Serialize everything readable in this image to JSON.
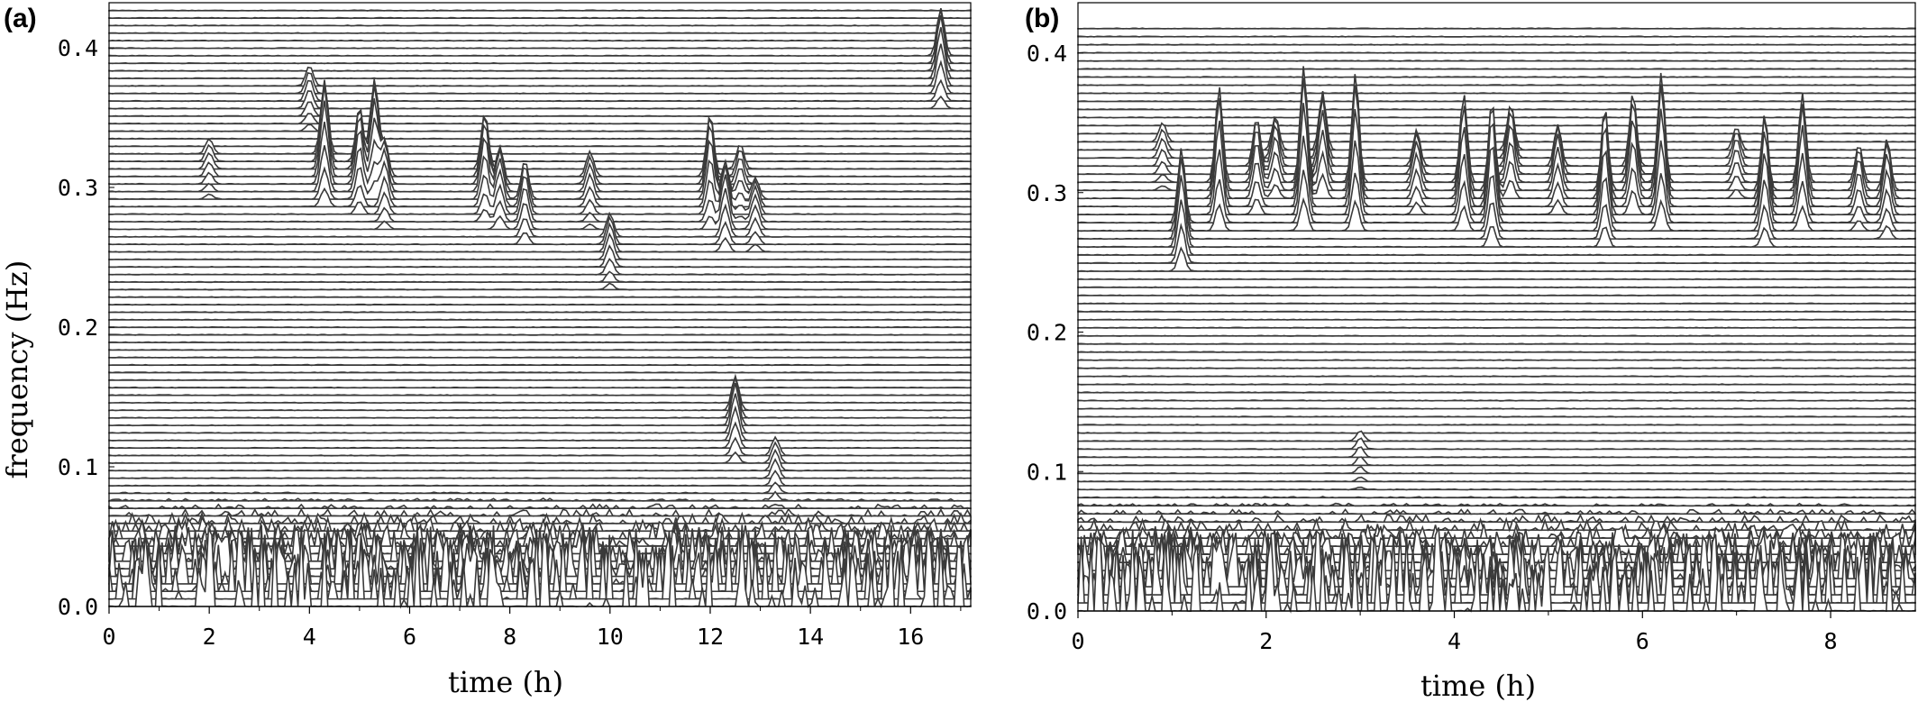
{
  "chart_data": [
    {
      "type": "line",
      "panel_label": "(a)",
      "chart_kind": "waterfall time-frequency plot (stacked spectral traces)",
      "xlabel": "time (h)",
      "ylabel": "frequency (Hz)",
      "xlim": [
        0,
        17.2
      ],
      "ylim": [
        0,
        0.43
      ],
      "xticks": [
        0,
        2,
        4,
        6,
        8,
        10,
        12,
        14,
        16
      ],
      "yticks": [
        0.0,
        0.1,
        0.2,
        0.3,
        0.4
      ],
      "xtick_labels": [
        "0",
        "2",
        "4",
        "6",
        "8",
        "10",
        "12",
        "14",
        "16"
      ],
      "ytick_labels": [
        "0.0",
        "0.1",
        "0.2",
        "0.3",
        "0.4"
      ],
      "trace_spacing_hz": 0.0054,
      "background_level": 0.0005,
      "grid": false,
      "peaks": [
        {
          "t": 2.0,
          "f": 0.317,
          "a": 0.012
        },
        {
          "t": 4.0,
          "f": 0.365,
          "a": 0.016
        },
        {
          "t": 4.3,
          "f": 0.315,
          "a": 0.06
        },
        {
          "t": 5.0,
          "f": 0.31,
          "a": 0.045
        },
        {
          "t": 5.3,
          "f": 0.32,
          "a": 0.055
        },
        {
          "t": 5.5,
          "f": 0.3,
          "a": 0.03
        },
        {
          "t": 7.5,
          "f": 0.305,
          "a": 0.045
        },
        {
          "t": 7.8,
          "f": 0.295,
          "a": 0.03
        },
        {
          "t": 8.3,
          "f": 0.285,
          "a": 0.03
        },
        {
          "t": 9.6,
          "f": 0.3,
          "a": 0.02
        },
        {
          "t": 10.0,
          "f": 0.255,
          "a": 0.02
        },
        {
          "t": 12.0,
          "f": 0.3,
          "a": 0.05
        },
        {
          "t": 12.3,
          "f": 0.28,
          "a": 0.035
        },
        {
          "t": 12.6,
          "f": 0.305,
          "a": 0.02
        },
        {
          "t": 12.9,
          "f": 0.28,
          "a": 0.02
        },
        {
          "t": 16.6,
          "f": 0.385,
          "a": 0.04
        },
        {
          "t": 12.5,
          "f": 0.13,
          "a": 0.03
        },
        {
          "t": 13.3,
          "f": 0.1,
          "a": 0.015
        }
      ]
    },
    {
      "type": "line",
      "panel_label": "(b)",
      "chart_kind": "waterfall time-frequency plot (stacked spectral traces)",
      "xlabel": "time (h)",
      "ylabel": "",
      "xlim": [
        0,
        8.9
      ],
      "ylim": [
        0,
        0.42
      ],
      "xticks": [
        0,
        2,
        4,
        6,
        8
      ],
      "yticks": [
        0.0,
        0.1,
        0.2,
        0.3,
        0.4
      ],
      "xtick_labels": [
        "0",
        "2",
        "4",
        "6",
        "8"
      ],
      "ytick_labels": [
        "0.0",
        "0.1",
        "0.2",
        "0.3",
        "0.4"
      ],
      "trace_spacing_hz": 0.0058,
      "background_level": 0.0005,
      "grid": false,
      "peaks": [
        {
          "t": 0.9,
          "f": 0.33,
          "a": 0.015
        },
        {
          "t": 1.1,
          "f": 0.27,
          "a": 0.06
        },
        {
          "t": 1.5,
          "f": 0.3,
          "a": 0.075
        },
        {
          "t": 1.9,
          "f": 0.31,
          "a": 0.04
        },
        {
          "t": 2.1,
          "f": 0.32,
          "a": 0.03
        },
        {
          "t": 2.4,
          "f": 0.3,
          "a": 0.09
        },
        {
          "t": 2.6,
          "f": 0.32,
          "a": 0.05
        },
        {
          "t": 2.95,
          "f": 0.3,
          "a": 0.085
        },
        {
          "t": 3.6,
          "f": 0.31,
          "a": 0.03
        },
        {
          "t": 4.1,
          "f": 0.3,
          "a": 0.07
        },
        {
          "t": 4.4,
          "f": 0.29,
          "a": 0.075
        },
        {
          "t": 4.6,
          "f": 0.32,
          "a": 0.04
        },
        {
          "t": 5.1,
          "f": 0.31,
          "a": 0.035
        },
        {
          "t": 5.6,
          "f": 0.29,
          "a": 0.07
        },
        {
          "t": 5.9,
          "f": 0.31,
          "a": 0.06
        },
        {
          "t": 6.2,
          "f": 0.3,
          "a": 0.085
        },
        {
          "t": 7.0,
          "f": 0.32,
          "a": 0.02
        },
        {
          "t": 7.3,
          "f": 0.29,
          "a": 0.065
        },
        {
          "t": 7.7,
          "f": 0.3,
          "a": 0.07
        },
        {
          "t": 8.3,
          "f": 0.3,
          "a": 0.03
        },
        {
          "t": 8.6,
          "f": 0.295,
          "a": 0.04
        },
        {
          "t": 3.0,
          "f": 0.115,
          "a": 0.008
        }
      ]
    }
  ]
}
